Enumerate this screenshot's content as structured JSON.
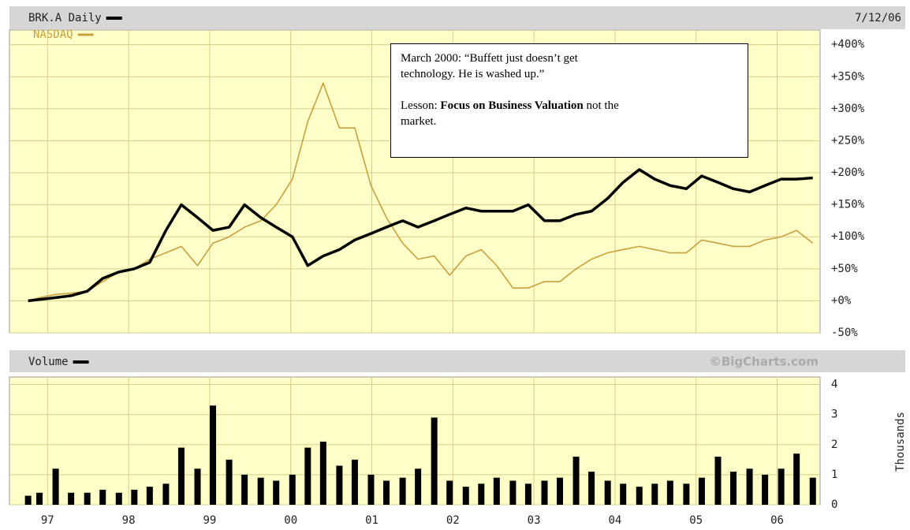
{
  "chart_data": [
    {
      "type": "line",
      "date": "7/12/06",
      "xlim": [
        1996.53,
        2006.53
      ],
      "ylim": [
        -50,
        423
      ],
      "yticks": [
        {
          "value": 400,
          "label": "+400%"
        },
        {
          "value": 350,
          "label": "+350%"
        },
        {
          "value": 300,
          "label": "+300%"
        },
        {
          "value": 250,
          "label": "+250%"
        },
        {
          "value": 200,
          "label": "+200%"
        },
        {
          "value": 150,
          "label": "+150%"
        },
        {
          "value": 100,
          "label": "+100%"
        },
        {
          "value": 50,
          "label": "+50%"
        },
        {
          "value": 0,
          "label": "+0%"
        },
        {
          "value": -50,
          "label": "-50%"
        }
      ],
      "grid": true,
      "x": [
        1996.76,
        1996.9,
        1997.1,
        1997.29,
        1997.49,
        1997.68,
        1997.88,
        1998.07,
        1998.26,
        1998.46,
        1998.65,
        1998.85,
        1999.04,
        1999.24,
        1999.43,
        1999.63,
        1999.82,
        2000.02,
        2000.21,
        2000.4,
        2000.6,
        2000.79,
        2000.99,
        2001.18,
        2001.38,
        2001.57,
        2001.77,
        2001.96,
        2002.16,
        2002.35,
        2002.54,
        2002.74,
        2002.93,
        2003.13,
        2003.32,
        2003.52,
        2003.71,
        2003.91,
        2004.1,
        2004.3,
        2004.49,
        2004.68,
        2004.88,
        2005.07,
        2005.27,
        2005.46,
        2005.66,
        2005.85,
        2006.05,
        2006.24,
        2006.44
      ],
      "series": [
        {
          "name": "BRK.A Daily",
          "color": "#000000",
          "values": [
            0,
            2,
            5,
            8,
            15,
            35,
            45,
            50,
            60,
            110,
            150,
            130,
            110,
            115,
            150,
            130,
            115,
            100,
            55,
            70,
            80,
            95,
            105,
            115,
            125,
            115,
            125,
            135,
            145,
            140,
            140,
            140,
            150,
            125,
            125,
            135,
            140,
            160,
            185,
            205,
            190,
            180,
            175,
            195,
            185,
            175,
            170,
            180,
            190,
            190,
            192
          ]
        },
        {
          "name": "NASDAQ",
          "color": "#c9a040",
          "values": [
            0,
            5,
            10,
            12,
            15,
            30,
            45,
            50,
            65,
            75,
            85,
            55,
            90,
            100,
            115,
            125,
            150,
            190,
            280,
            340,
            270,
            270,
            180,
            130,
            90,
            65,
            70,
            40,
            70,
            80,
            55,
            20,
            20,
            30,
            30,
            50,
            65,
            75,
            80,
            85,
            80,
            75,
            75,
            95,
            90,
            85,
            85,
            95,
            100,
            110,
            90
          ]
        }
      ],
      "annotation": {
        "quote_lines": [
          "March 2000: “Buffett just doesn’t get",
          "technology.  He is washed up.”"
        ],
        "lesson_prefix": "Lesson:",
        "lesson_bold": "Focus on Business Valuation",
        "lesson_rest": [
          "not the",
          "market."
        ]
      }
    },
    {
      "type": "bar",
      "source": "©BigCharts.com",
      "ylabel": "Thousands",
      "xlim": [
        1996.53,
        2006.53
      ],
      "xticks": [
        {
          "value": 1997,
          "label": "97"
        },
        {
          "value": 1998,
          "label": "98"
        },
        {
          "value": 1999,
          "label": "99"
        },
        {
          "value": 2000,
          "label": "00"
        },
        {
          "value": 2001,
          "label": "01"
        },
        {
          "value": 2002,
          "label": "02"
        },
        {
          "value": 2003,
          "label": "03"
        },
        {
          "value": 2004,
          "label": "04"
        },
        {
          "value": 2005,
          "label": "05"
        },
        {
          "value": 2006,
          "label": "06"
        }
      ],
      "ylim": [
        0,
        4.25
      ],
      "yticks": [
        0,
        1,
        2,
        3,
        4
      ],
      "grid": true,
      "x": [
        1996.76,
        1996.9,
        1997.1,
        1997.29,
        1997.49,
        1997.68,
        1997.88,
        1998.07,
        1998.26,
        1998.46,
        1998.65,
        1998.85,
        1999.04,
        1999.24,
        1999.43,
        1999.63,
        1999.82,
        2000.02,
        2000.21,
        2000.4,
        2000.6,
        2000.79,
        2000.99,
        2001.18,
        2001.38,
        2001.57,
        2001.77,
        2001.96,
        2002.16,
        2002.35,
        2002.54,
        2002.74,
        2002.93,
        2003.13,
        2003.32,
        2003.52,
        2003.71,
        2003.91,
        2004.1,
        2004.3,
        2004.49,
        2004.68,
        2004.88,
        2005.07,
        2005.27,
        2005.46,
        2005.66,
        2005.85,
        2006.05,
        2006.24,
        2006.44
      ],
      "series": [
        {
          "name": "Volume",
          "color": "#000000",
          "values": [
            0.3,
            0.4,
            1.2,
            0.4,
            0.4,
            0.5,
            0.4,
            0.5,
            0.6,
            0.7,
            1.9,
            1.2,
            3.3,
            1.5,
            1.0,
            0.9,
            0.8,
            1.0,
            1.9,
            2.1,
            1.3,
            1.5,
            1.0,
            0.8,
            0.9,
            1.2,
            2.9,
            0.8,
            0.6,
            0.7,
            0.9,
            0.8,
            0.7,
            0.8,
            0.9,
            1.6,
            1.1,
            0.8,
            0.7,
            0.6,
            0.7,
            0.8,
            0.7,
            0.9,
            1.6,
            1.1,
            1.2,
            1.0,
            1.2,
            1.7,
            0.9
          ]
        }
      ]
    }
  ]
}
